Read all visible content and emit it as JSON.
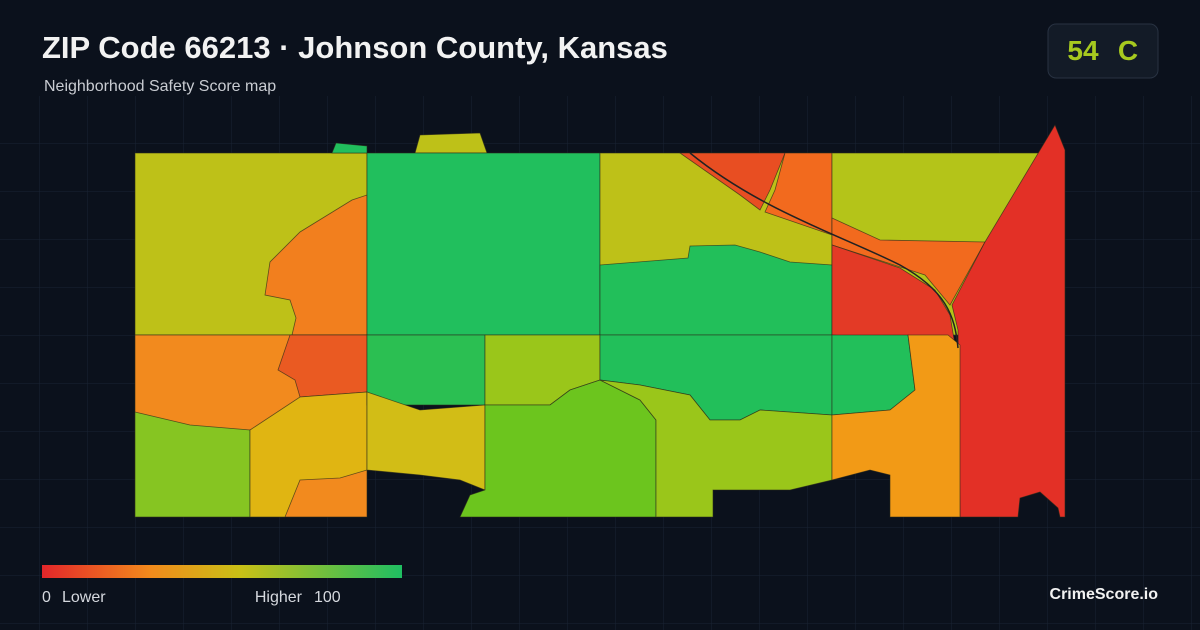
{
  "header": {
    "title": "ZIP Code 66213 · Johnson County, Kansas",
    "subtitle": "Neighborhood Safety Score map"
  },
  "score": {
    "value": 54,
    "grade": "C"
  },
  "legend": {
    "min": 0,
    "min_label": "Lower",
    "max_label": "Higher",
    "max": 100
  },
  "brand": "CrimeScore.io"
}
